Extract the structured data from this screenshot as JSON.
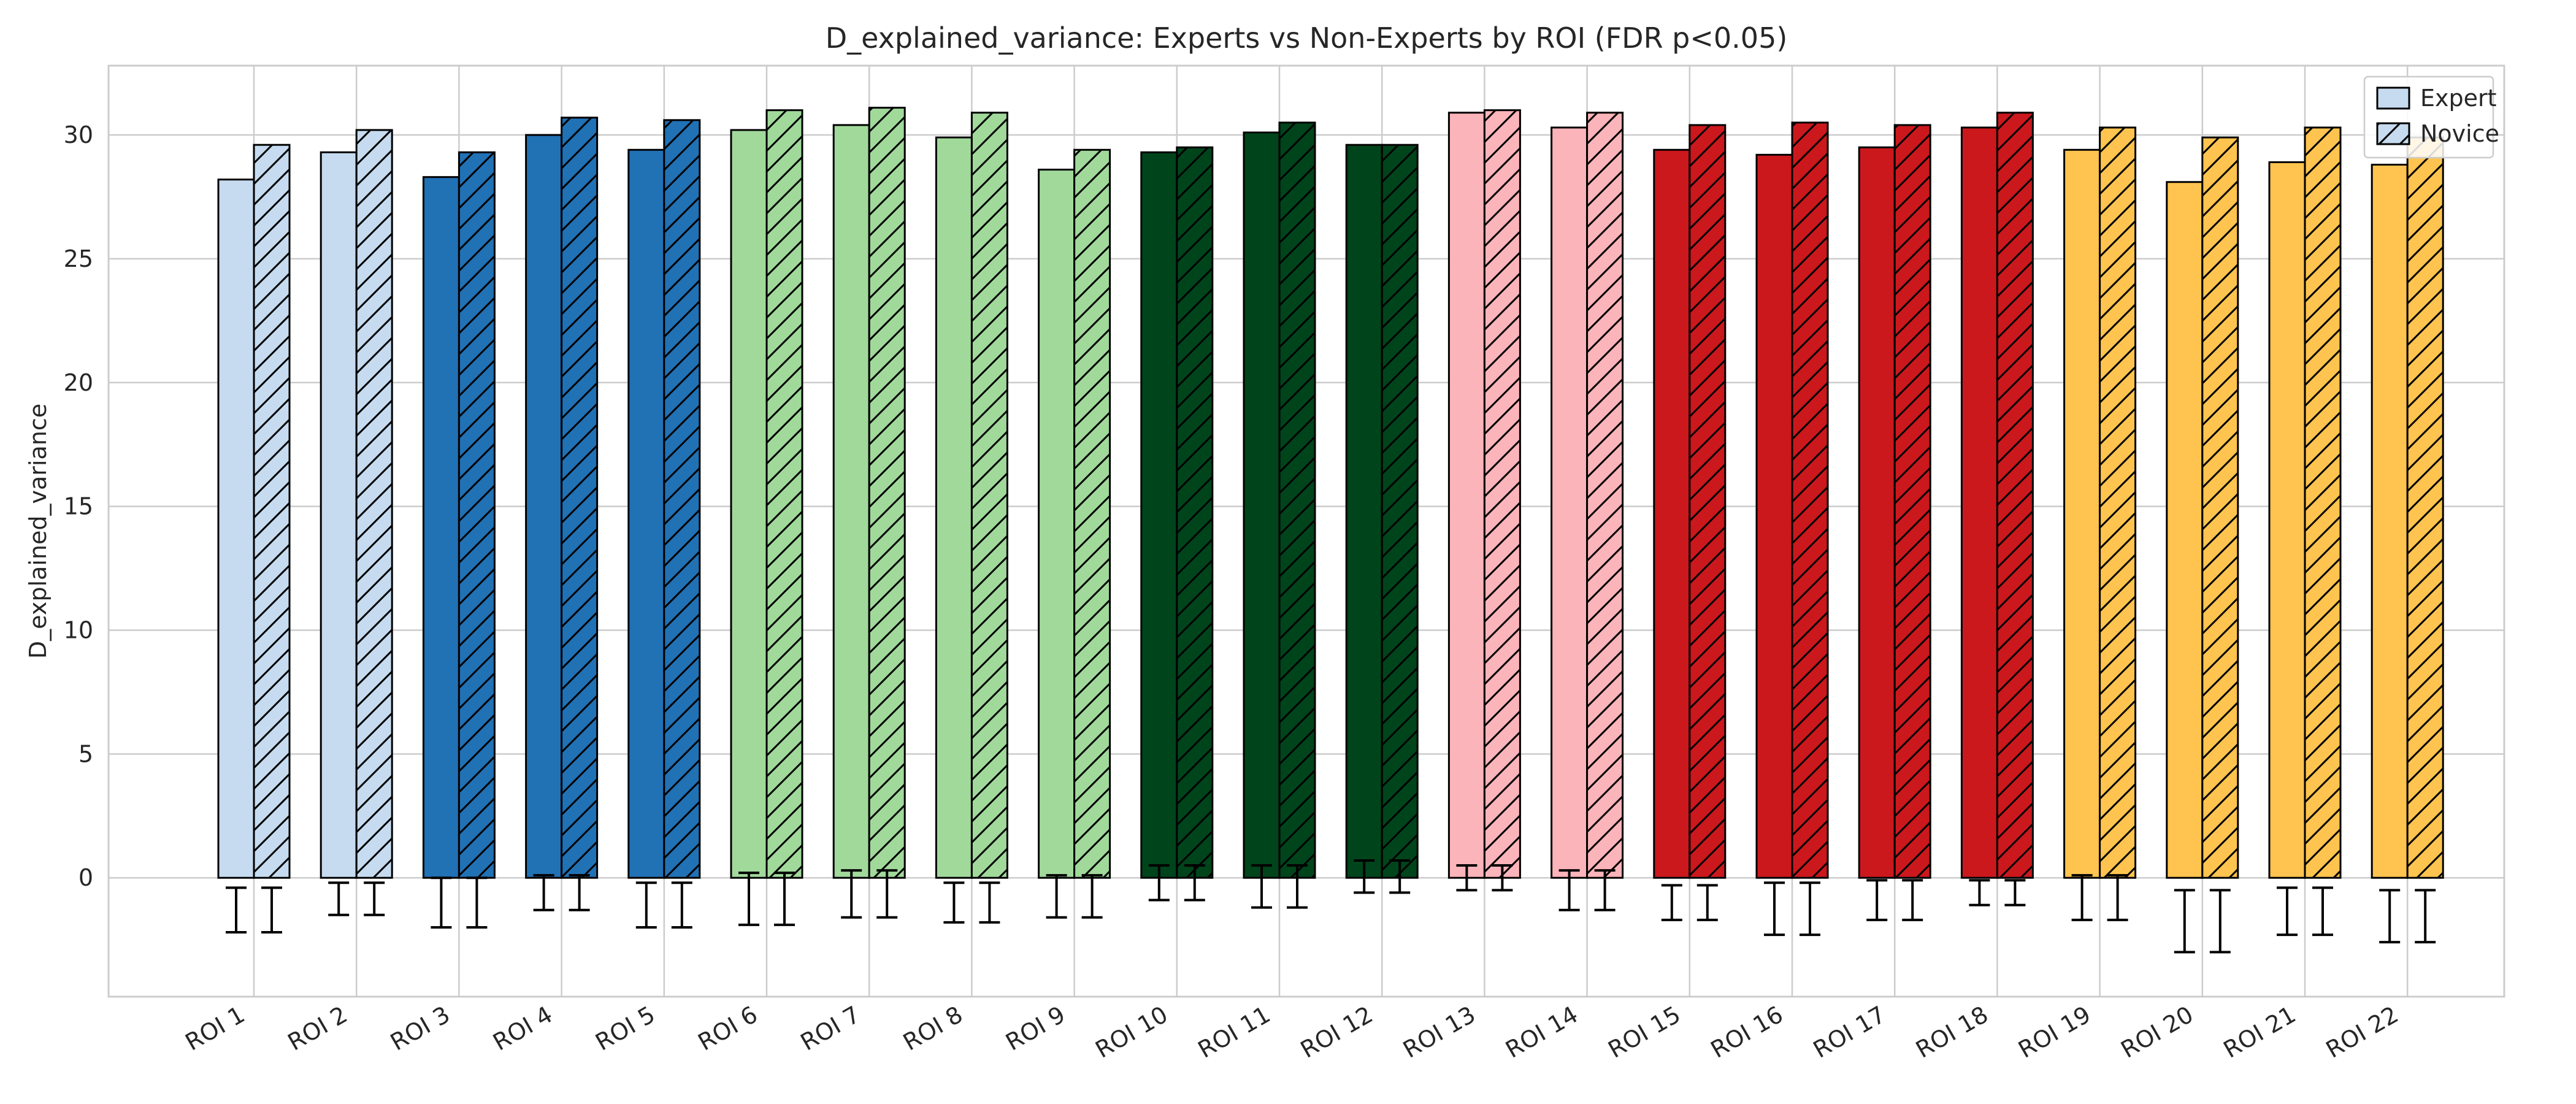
{
  "chart_data": {
    "type": "bar",
    "title": "D_explained_variance: Experts vs Non-Experts by ROI (FDR p<0.05)",
    "xlabel": "",
    "ylabel": "D_explained_variance",
    "ylim": [
      -4.8,
      32.8
    ],
    "yticks": [
      0,
      5,
      10,
      15,
      20,
      25,
      30
    ],
    "grid": true,
    "legend_position": "top-right",
    "categories": [
      "ROI 1",
      "ROI 2",
      "ROI 3",
      "ROI 4",
      "ROI 5",
      "ROI 6",
      "ROI 7",
      "ROI 8",
      "ROI 9",
      "ROI 10",
      "ROI 11",
      "ROI 12",
      "ROI 13",
      "ROI 14",
      "ROI 15",
      "ROI 16",
      "ROI 17",
      "ROI 18",
      "ROI 19",
      "ROI 20",
      "ROI 21",
      "ROI 22"
    ],
    "bar_colors": [
      "#c6dbef",
      "#c6dbef",
      "#2171b5",
      "#2171b5",
      "#2171b5",
      "#a1d99b",
      "#a1d99b",
      "#a1d99b",
      "#a1d99b",
      "#00441b",
      "#00441b",
      "#00441b",
      "#fbb4b9",
      "#fbb4b9",
      "#cb181d",
      "#cb181d",
      "#cb181d",
      "#cb181d",
      "#fec44f",
      "#fec44f",
      "#fec44f",
      "#fec44f"
    ],
    "series": [
      {
        "name": "Expert",
        "hatch": false,
        "values": [
          28.2,
          29.3,
          28.3,
          30.0,
          29.4,
          30.2,
          30.4,
          29.9,
          28.6,
          29.3,
          30.1,
          29.6,
          30.9,
          30.3,
          29.4,
          29.2,
          29.5,
          30.3,
          29.4,
          28.1,
          28.9,
          28.8
        ],
        "error_low": [
          -2.2,
          -1.5,
          -2.0,
          -1.3,
          -2.0,
          -1.9,
          -1.6,
          -1.8,
          -1.6,
          -0.9,
          -1.2,
          -0.6,
          -0.5,
          -1.3,
          -1.7,
          -2.3,
          -1.7,
          -1.1,
          -1.7,
          -3.0,
          -2.3,
          -2.6
        ],
        "error_high": [
          -0.4,
          -0.2,
          0.0,
          0.1,
          -0.2,
          0.2,
          0.3,
          -0.2,
          0.1,
          0.5,
          0.5,
          0.7,
          0.5,
          0.3,
          -0.3,
          -0.2,
          -0.1,
          -0.1,
          0.1,
          -0.5,
          -0.4,
          -0.5
        ]
      },
      {
        "name": "Novice",
        "hatch": true,
        "values": [
          29.6,
          30.2,
          29.3,
          30.7,
          30.6,
          31.0,
          31.1,
          30.9,
          29.4,
          29.5,
          30.5,
          29.6,
          31.0,
          30.9,
          30.4,
          30.5,
          30.4,
          30.9,
          30.3,
          29.9,
          30.3,
          29.9
        ],
        "error_low": [
          -2.2,
          -1.5,
          -2.0,
          -1.3,
          -2.0,
          -1.9,
          -1.6,
          -1.8,
          -1.6,
          -0.9,
          -1.2,
          -0.6,
          -0.5,
          -1.3,
          -1.7,
          -2.3,
          -1.7,
          -1.1,
          -1.7,
          -3.0,
          -2.3,
          -2.6
        ],
        "error_high": [
          -0.4,
          -0.2,
          0.0,
          0.1,
          -0.2,
          0.2,
          0.3,
          -0.2,
          0.1,
          0.5,
          0.5,
          0.7,
          0.5,
          0.3,
          -0.3,
          -0.2,
          -0.1,
          -0.1,
          0.1,
          -0.5,
          -0.4,
          -0.5
        ]
      }
    ]
  }
}
